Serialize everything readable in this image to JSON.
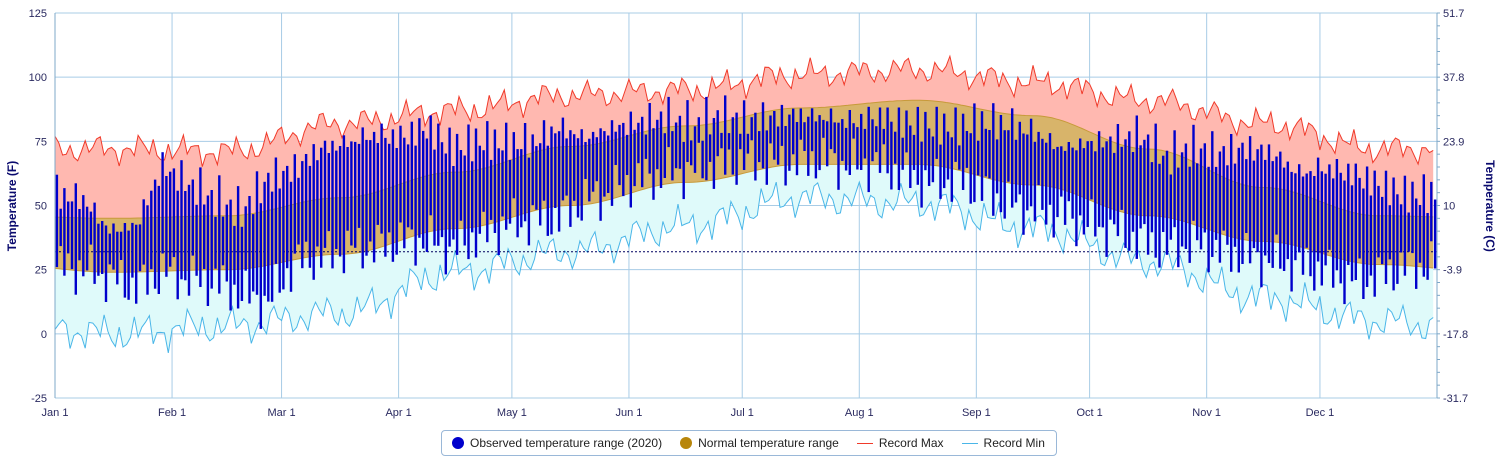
{
  "chart_data": {
    "type": "area",
    "year": "2020",
    "x_months": [
      "Jan 1",
      "Feb 1",
      "Mar 1",
      "Apr 1",
      "May 1",
      "Jun 1",
      "Jul 1",
      "Aug 1",
      "Sep 1",
      "Oct 1",
      "Nov 1",
      "Dec 1"
    ],
    "y_left": {
      "label": "Temperature (F)",
      "ticks": [
        125,
        100,
        75,
        50,
        25,
        0,
        -25
      ],
      "range": [
        -25,
        125
      ]
    },
    "y_right": {
      "label": "Temperature (C)",
      "ticks": [
        "51.7",
        "37.8",
        "23.9",
        "10",
        "-3.9",
        "-17.8",
        "-31.7"
      ]
    },
    "freezing_line_f": 32,
    "normal_range_monthly_f": {
      "months": [
        "Jan",
        "Feb",
        "Mar",
        "Apr",
        "May",
        "Jun",
        "Jul",
        "Aug",
        "Sep",
        "Oct",
        "Nov",
        "Dec"
      ],
      "low": [
        24,
        25,
        31,
        41,
        50,
        59,
        66,
        66,
        58,
        46,
        36,
        27
      ],
      "high": [
        45,
        46,
        53,
        63,
        73,
        81,
        88,
        91,
        85,
        72,
        57,
        46
      ]
    },
    "record_max_monthly_f": [
      72,
      71,
      82,
      87,
      93,
      95,
      101,
      103,
      98,
      91,
      82,
      72
    ],
    "record_min_monthly_f": [
      0,
      3,
      8,
      24,
      32,
      42,
      53,
      51,
      41,
      28,
      14,
      5
    ],
    "observed_weekly_f": {
      "week_start": [
        "Jan 1",
        "Jan 8",
        "Jan 15",
        "Jan 22",
        "Jan 29",
        "Feb 5",
        "Feb 12",
        "Feb 19",
        "Feb 26",
        "Mar 4",
        "Mar 11",
        "Mar 18",
        "Mar 25",
        "Apr 1",
        "Apr 8",
        "Apr 15",
        "Apr 22",
        "Apr 29",
        "May 6",
        "May 13",
        "May 20",
        "May 27",
        "Jun 3",
        "Jun 10",
        "Jun 17",
        "Jun 24",
        "Jul 1",
        "Jul 8",
        "Jul 15",
        "Jul 22",
        "Jul 29",
        "Aug 5",
        "Aug 12",
        "Aug 19",
        "Aug 26",
        "Sep 2",
        "Sep 9",
        "Sep 16",
        "Sep 23",
        "Sep 30",
        "Oct 7",
        "Oct 14",
        "Oct 21",
        "Oct 28",
        "Nov 4",
        "Nov 11",
        "Nov 18",
        "Nov 25",
        "Dec 2",
        "Dec 9",
        "Dec 16",
        "Dec 23"
      ],
      "low": [
        26,
        25,
        22,
        18,
        24,
        21,
        20,
        15,
        12,
        28,
        30,
        33,
        34,
        36,
        36,
        33,
        38,
        42,
        44,
        45,
        52,
        55,
        60,
        62,
        64,
        65,
        67,
        66,
        67,
        68,
        65,
        66,
        62,
        58,
        60,
        56,
        50,
        48,
        46,
        42,
        40,
        36,
        33,
        35,
        32,
        30,
        28,
        26,
        24,
        20,
        22,
        26
      ],
      "high": [
        62,
        60,
        48,
        50,
        73,
        66,
        60,
        55,
        68,
        72,
        80,
        82,
        85,
        84,
        88,
        80,
        83,
        82,
        82,
        88,
        84,
        88,
        90,
        92,
        88,
        92,
        91,
        92,
        93,
        92,
        90,
        92,
        90,
        89,
        88,
        90,
        89,
        86,
        80,
        82,
        83,
        85,
        76,
        80,
        78,
        80,
        78,
        70,
        72,
        70,
        66,
        62
      ]
    }
  },
  "legend": {
    "observed_label": "Observed temperature range (2020)",
    "normal_label": "Normal temperature range",
    "record_max_label": "Record Max",
    "record_min_label": "Record Min"
  },
  "colors": {
    "observed": "#0000cc",
    "normal_fill": "#d8b46a",
    "normal_stroke": "#c79a3a",
    "normal_dot": "#b8860b",
    "record_max_fill": "#ffb8b0",
    "record_max_line": "#f03a2a",
    "record_min_fill": "#dffafa",
    "record_min_line": "#4ab6e8",
    "grid": "#a8cce6"
  }
}
